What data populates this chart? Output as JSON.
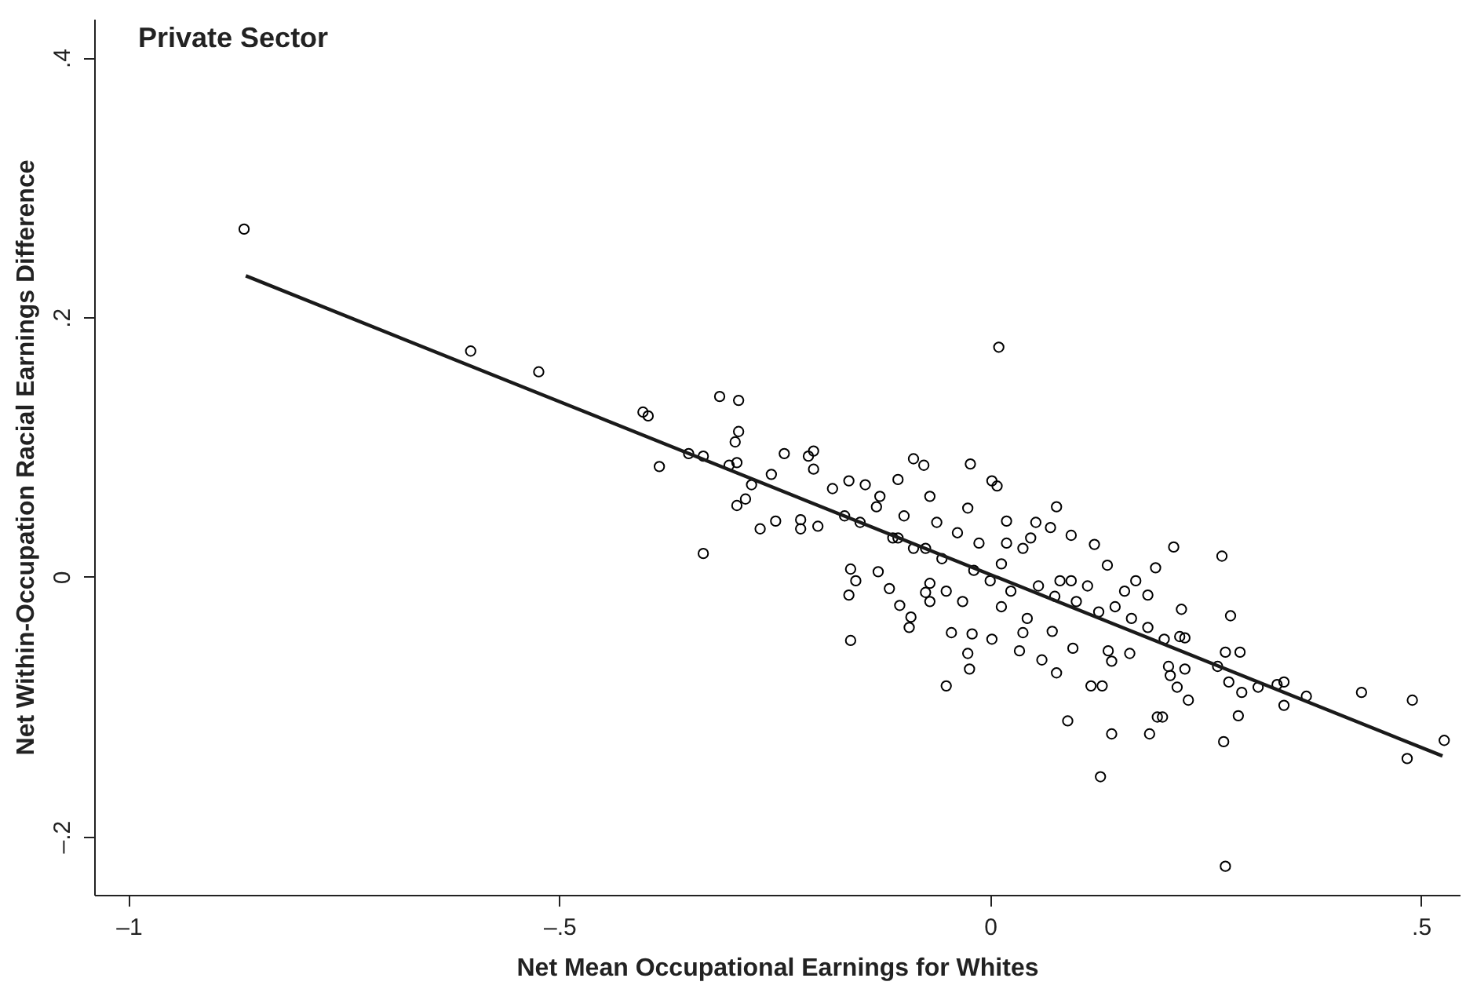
{
  "chart_data": {
    "type": "scatter",
    "title": "Private Sector",
    "xlabel": "Net Mean Occupational Earnings for Whites",
    "ylabel": "Net Within-Occupation Racial Earnings Difference",
    "xlim": [
      -1.04,
      0.545
    ],
    "ylim": [
      -0.245,
      0.43
    ],
    "xticks": [
      {
        "value": -1,
        "label": "–1"
      },
      {
        "value": -0.5,
        "label": "–.5"
      },
      0,
      {
        "value": 0.5,
        "label": ".5"
      }
    ],
    "yticks": [
      {
        "value": -0.2,
        "label": "–.2"
      },
      0,
      {
        "value": 0.2,
        "label": ".2"
      },
      {
        "value": 0.4,
        "label": ".4"
      }
    ],
    "grid": false,
    "series": [
      {
        "color": "#000000",
        "marker": "circle",
        "x": [
          -0.866,
          -0.603,
          -0.524,
          -0.403,
          -0.397,
          -0.314,
          -0.292,
          -0.292,
          -0.296,
          -0.294,
          -0.384,
          -0.35,
          -0.333,
          -0.333,
          -0.303,
          -0.239,
          -0.211,
          -0.205,
          -0.205,
          -0.294,
          -0.284,
          -0.267,
          -0.249,
          -0.277,
          -0.254,
          -0.22,
          -0.22,
          -0.2,
          -0.164,
          -0.145,
          -0.183,
          -0.162,
          -0.156,
          -0.164,
          -0.162,
          -0.13,
          -0.117,
          -0.105,
          -0.094,
          -0.092,
          -0.089,
          -0.077,
          -0.107,
          -0.07,
          -0.07,
          -0.075,
          -0.128,
          -0.151,
          -0.113,
          -0.089,
          -0.169,
          -0.132,
          -0.023,
          0.002,
          0.008,
          -0.026,
          0.019,
          0.053,
          0.077,
          0.07,
          0.094,
          0.121,
          0.213,
          0.269,
          0.192,
          0.136,
          0.279,
          0.169,
          0.156,
          0.222,
          0.183,
          -0.051,
          -0.024,
          -0.026,
          -0.045,
          -0.021,
          0.002,
          0.038,
          0.034,
          0.06,
          0.077,
          0.09,
          0.072,
          0.096,
          0.117,
          0.13,
          0.141,
          0.128,
          0.137,
          0.141,
          0.162,
          0.185,
          0.194,
          0.2,
          0.209,
          0.217,
          0.226,
          0.23,
          0.207,
          0.226,
          0.22,
          0.264,
          0.273,
          0.29,
          0.277,
          0.292,
          0.288,
          0.271,
          0.273,
          0.311,
          0.333,
          0.341,
          0.341,
          0.367,
          0.431,
          0.49,
          0.484,
          0.527,
          -0.107,
          -0.075,
          -0.056,
          -0.038,
          -0.019,
          -0.013,
          0.0,
          0.013,
          0.024,
          0.038,
          0.047,
          0.056,
          0.075,
          0.081,
          0.1,
          0.113,
          0.126,
          0.145,
          0.164,
          0.183,
          0.202,
          -0.051,
          -0.07,
          -0.032,
          0.013,
          0.043,
          -0.1,
          -0.062,
          0.019,
          0.094,
          0.01
        ],
        "values": [
          0.268,
          0.174,
          0.158,
          0.127,
          0.124,
          0.139,
          0.136,
          0.112,
          0.104,
          0.088,
          0.085,
          0.095,
          0.093,
          0.018,
          0.086,
          0.095,
          0.093,
          0.097,
          0.083,
          0.055,
          0.06,
          0.037,
          0.043,
          0.071,
          0.079,
          0.037,
          0.044,
          0.039,
          0.074,
          0.071,
          0.068,
          0.006,
          -0.003,
          -0.014,
          -0.049,
          0.004,
          -0.009,
          -0.022,
          -0.039,
          -0.031,
          0.091,
          0.086,
          0.075,
          0.062,
          -0.005,
          -0.012,
          0.062,
          0.042,
          0.03,
          0.022,
          0.047,
          0.054,
          0.087,
          0.074,
          0.07,
          0.053,
          0.043,
          0.042,
          0.054,
          0.038,
          0.032,
          0.025,
          0.023,
          0.016,
          0.007,
          0.009,
          -0.03,
          -0.003,
          -0.011,
          -0.025,
          -0.014,
          -0.084,
          -0.071,
          -0.059,
          -0.043,
          -0.044,
          -0.048,
          -0.043,
          -0.057,
          -0.064,
          -0.074,
          -0.111,
          -0.042,
          -0.055,
          -0.084,
          -0.084,
          -0.121,
          -0.154,
          -0.057,
          -0.065,
          -0.059,
          -0.121,
          -0.108,
          -0.108,
          -0.076,
          -0.085,
          -0.071,
          -0.095,
          -0.069,
          -0.047,
          -0.046,
          -0.069,
          -0.058,
          -0.058,
          -0.081,
          -0.089,
          -0.107,
          -0.127,
          -0.223,
          -0.085,
          -0.083,
          -0.081,
          -0.099,
          -0.092,
          -0.089,
          -0.095,
          -0.14,
          -0.126,
          0.03,
          0.022,
          0.014,
          0.034,
          0.005,
          0.026,
          -0.003,
          0.01,
          -0.011,
          0.022,
          0.03,
          -0.007,
          -0.015,
          -0.003,
          -0.019,
          -0.007,
          -0.027,
          -0.023,
          -0.032,
          -0.039,
          -0.048,
          -0.011,
          -0.019,
          -0.019,
          -0.023,
          -0.032,
          0.047,
          0.042,
          0.026,
          -0.003,
          0.177
        ]
      },
      {
        "type": "line",
        "color": "#1a1a1a",
        "line_style": "solid",
        "x": [
          -0.864,
          0.525
        ],
        "values": [
          0.232,
          -0.138
        ]
      }
    ]
  }
}
